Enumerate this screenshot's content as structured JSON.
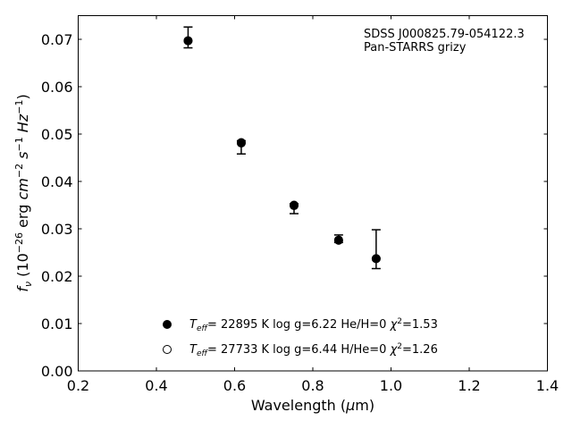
{
  "chart_data": {
    "type": "scatter",
    "xlabel": "Wavelength (",
    "xlabel_sym": "μ",
    "xlabel_tail": "m)",
    "ylabel_parts": {
      "f": "f",
      "nu": "ν",
      "a": " (10",
      "e1": "−26",
      "b": " erg ",
      "cm": "cm",
      "e2": "−2",
      "s": " s",
      "e3": "−1",
      "hz": " Hz",
      "e4": "−1",
      "c": ")"
    },
    "xlim": [
      0.2,
      1.4
    ],
    "ylim": [
      0.0,
      0.075
    ],
    "xticks": [
      {
        "v": 0.2,
        "label": "0.2"
      },
      {
        "v": 0.4,
        "label": "0.4"
      },
      {
        "v": 0.6,
        "label": "0.6"
      },
      {
        "v": 0.8,
        "label": "0.8"
      },
      {
        "v": 1.0,
        "label": "1.0"
      },
      {
        "v": 1.2,
        "label": "1.2"
      },
      {
        "v": 1.4,
        "label": "1.4"
      }
    ],
    "yticks": [
      {
        "v": 0.0,
        "label": "0.00"
      },
      {
        "v": 0.01,
        "label": "0.01"
      },
      {
        "v": 0.02,
        "label": "0.02"
      },
      {
        "v": 0.03,
        "label": "0.03"
      },
      {
        "v": 0.04,
        "label": "0.04"
      },
      {
        "v": 0.05,
        "label": "0.05"
      },
      {
        "v": 0.06,
        "label": "0.06"
      },
      {
        "v": 0.07,
        "label": "0.07"
      }
    ],
    "observed": [
      {
        "x": 0.481,
        "y": 0.0698,
        "ylo": 0.0682,
        "yhi": 0.0726
      },
      {
        "x": 0.617,
        "y": 0.0478,
        "ylo": 0.0458,
        "yhi": 0.0486
      },
      {
        "x": 0.752,
        "y": 0.0347,
        "ylo": 0.0332,
        "yhi": 0.0353
      },
      {
        "x": 0.866,
        "y": 0.0277,
        "ylo": 0.0271,
        "yhi": 0.0287
      },
      {
        "x": 0.962,
        "y": 0.0235,
        "ylo": 0.0216,
        "yhi": 0.0298
      }
    ],
    "series": [
      {
        "name": "He/H=0",
        "marker": "filled",
        "x": [
          0.481,
          0.617,
          0.752,
          0.866,
          0.962
        ],
        "y": [
          0.0697,
          0.0482,
          0.035,
          0.0276,
          0.0237
        ]
      },
      {
        "name": "H/He=0",
        "marker": "open",
        "x": [
          0.481,
          0.617,
          0.752,
          0.866,
          0.962
        ],
        "y": [
          0.0697,
          0.0481,
          0.0349,
          0.0276,
          0.0237
        ]
      }
    ],
    "legend": [
      {
        "marker": "filled",
        "teff_pre": "T",
        "teff_sub": "eff",
        "rest": "= 22895 K  log g=6.22  He/H=0  ",
        "chi": "χ",
        "chi_sup": "2",
        "chi_val": "=1.53"
      },
      {
        "marker": "open",
        "teff_pre": "T",
        "teff_sub": "eff",
        "rest": "= 27733 K  log g=6.44  H/He=0  ",
        "chi": "χ",
        "chi_sup": "2",
        "chi_val": "=1.26"
      }
    ],
    "legend_position": "lower-center",
    "annotation": [
      "SDSS J000825.79-054122.3",
      "Pan-STARRS grizy"
    ],
    "grid": false
  }
}
